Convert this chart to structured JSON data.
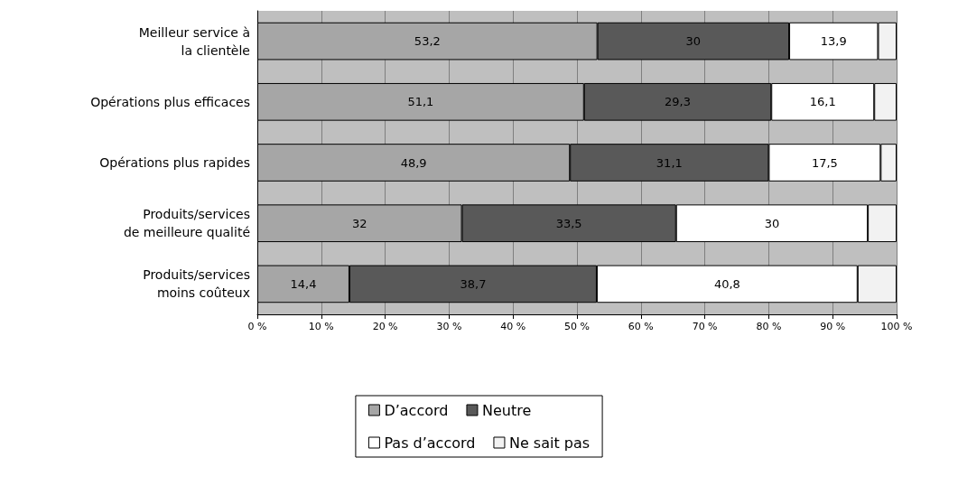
{
  "chart_data": {
    "type": "bar",
    "orientation": "horizontal",
    "stacked": true,
    "categories": [
      "Meilleur service à\nla clientèle",
      "Opérations plus efficaces",
      "Opérations plus rapides",
      "Produits/services\nde meilleure qualité",
      "Produits/services\nmoins coûteux"
    ],
    "series": [
      {
        "name": "D’accord",
        "color": "#a6a6a6",
        "values": [
          53.2,
          51.1,
          48.9,
          32,
          14.4
        ],
        "value_labels": [
          "53,2",
          "51,1",
          "48,9",
          "32",
          "14,4"
        ]
      },
      {
        "name": "Neutre",
        "color": "#595959",
        "values": [
          30,
          29.3,
          31.1,
          33.5,
          38.7
        ],
        "value_labels": [
          "30",
          "29,3",
          "31,1",
          "33,5",
          "38,7"
        ]
      },
      {
        "name": "Pas d’accord",
        "color": "#ffffff",
        "values": [
          13.9,
          16.1,
          17.5,
          30,
          40.8
        ],
        "value_labels": [
          "13,9",
          "16,1",
          "17,5",
          "30",
          "40,8"
        ]
      },
      {
        "name": "Ne sait pas",
        "color": "#f2f2f2",
        "values": [
          2.9,
          3.5,
          2.5,
          4.5,
          6.1
        ]
      }
    ],
    "xlim": [
      0,
      100
    ],
    "xticks": [
      {
        "value": 0,
        "label": "0 %"
      },
      {
        "value": 10,
        "label": "10 %"
      },
      {
        "value": 20,
        "label": "20 %"
      },
      {
        "value": 30,
        "label": "30 %"
      },
      {
        "value": 40,
        "label": "40 %"
      },
      {
        "value": 50,
        "label": "50 %"
      },
      {
        "value": 60,
        "label": "60 %"
      },
      {
        "value": 70,
        "label": "70 %"
      },
      {
        "value": 80,
        "label": "80 %"
      },
      {
        "value": 90,
        "label": "90 %"
      },
      {
        "value": 100,
        "label": "100 %"
      }
    ],
    "grid": "x",
    "legend": "bottom"
  }
}
